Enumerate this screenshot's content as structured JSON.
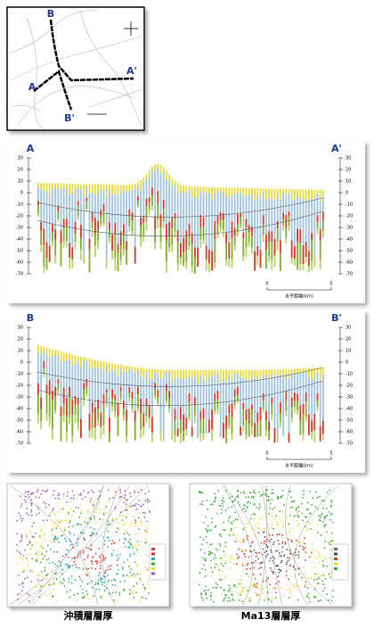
{
  "location_map": {
    "labels": {
      "a": "A",
      "a_prime": "A'",
      "b": "B",
      "b_prime": "B'"
    }
  },
  "sections": [
    {
      "left_label": "A",
      "right_label": "A'",
      "yticks": [
        30,
        20,
        10,
        0,
        -10,
        -20,
        -30,
        -40,
        -50,
        -60,
        -70
      ],
      "scale_label": "水平距離(km)",
      "scale_ticks": [
        0,
        5
      ]
    },
    {
      "left_label": "B",
      "right_label": "B'",
      "yticks": [
        30,
        20,
        10,
        0,
        -10,
        -20,
        -30,
        -40,
        -50,
        -60,
        -70
      ],
      "scale_label": "水平距離(km)",
      "scale_ticks": [
        0,
        5
      ]
    }
  ],
  "maps": [
    {
      "caption": "沖積層層厚"
    },
    {
      "caption": "Ma13層層厚"
    }
  ]
}
